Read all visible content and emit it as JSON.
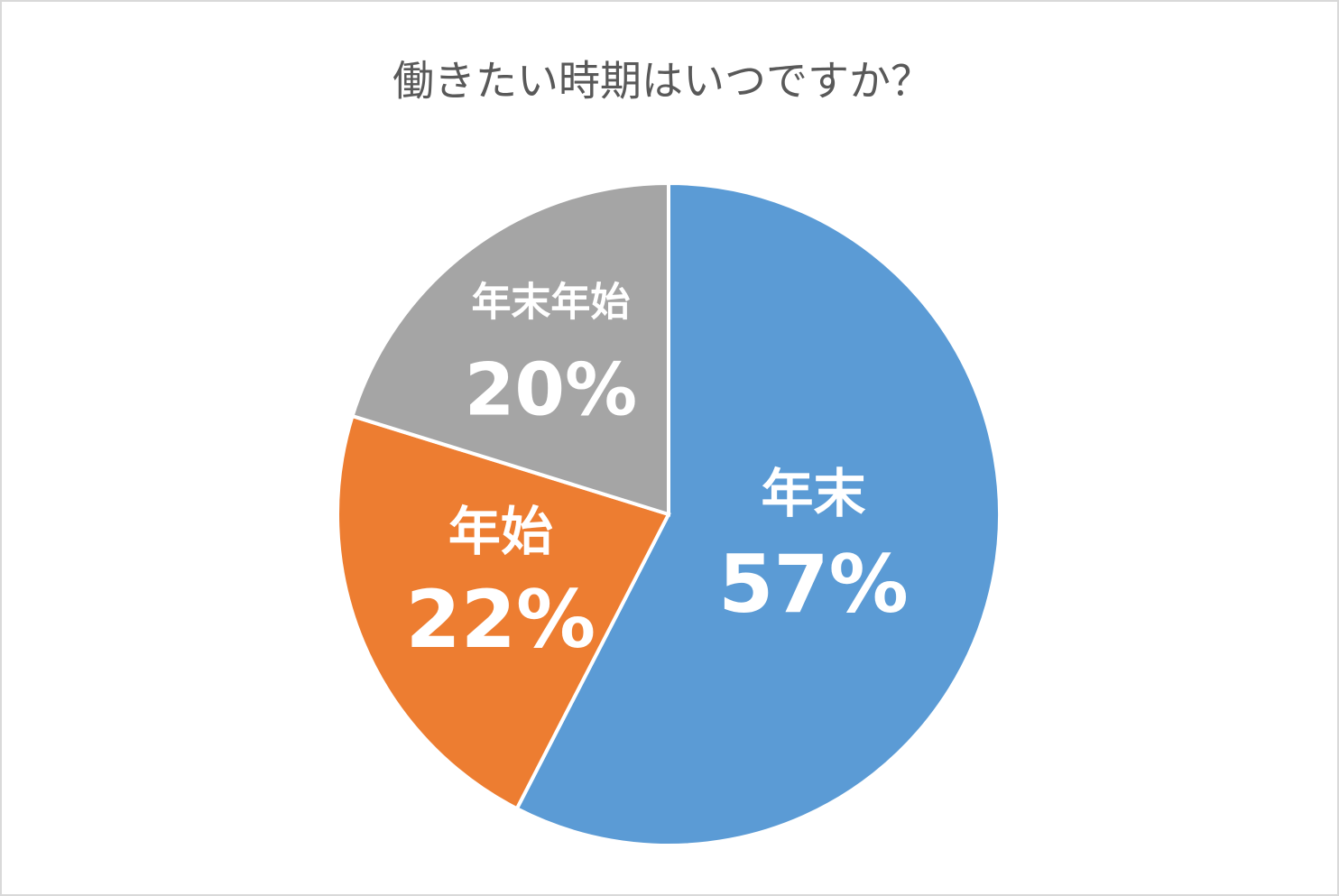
{
  "chart_data": {
    "type": "pie",
    "title": "働きたい時期はいつですか？",
    "categories": [
      "年末",
      "年始",
      "年末年始"
    ],
    "values": [
      57,
      22,
      20
    ],
    "value_labels": [
      "57%",
      "22%",
      "20%"
    ],
    "colors": [
      "#5b9bd5",
      "#ed7d31",
      "#a5a5a5"
    ]
  }
}
